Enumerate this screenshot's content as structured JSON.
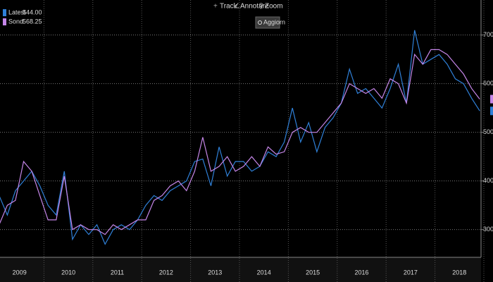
{
  "toolbar": {
    "track": "Track",
    "annotate": "Annotare",
    "zoom": "Zoom",
    "refresh": "Aggiorn"
  },
  "chart_data": {
    "type": "line",
    "categories": [
      null,
      null,
      null,
      "2009",
      null,
      null,
      null,
      null,
      null,
      "2010",
      null,
      null,
      null,
      null,
      null,
      "2011",
      null,
      null,
      null,
      null,
      null,
      "2012",
      null,
      null,
      null,
      null,
      null,
      "2013",
      null,
      null,
      null,
      null,
      null,
      "2014",
      null,
      null,
      null,
      null,
      null,
      "2015",
      null,
      null,
      null,
      null,
      null,
      "2016",
      null,
      null,
      null,
      null,
      null,
      "2017",
      null,
      null,
      null,
      null,
      null,
      "2018",
      null,
      null
    ],
    "series": [
      {
        "name": "Latest",
        "color": "#2f80d8",
        "last_label": "544.00",
        "values": [
          370,
          330,
          380,
          400,
          420,
          390,
          350,
          330,
          420,
          280,
          310,
          290,
          310,
          270,
          300,
          310,
          300,
          320,
          350,
          370,
          360,
          380,
          390,
          400,
          440,
          445,
          390,
          470,
          410,
          440,
          440,
          420,
          430,
          460,
          450,
          480,
          550,
          480,
          520,
          460,
          510,
          530,
          560,
          630,
          580,
          590,
          570,
          550,
          590,
          640,
          560,
          710,
          640,
          650,
          660,
          640,
          610,
          600,
          570,
          544
        ]
      },
      {
        "name": "Sond",
        "color": "#c586e8",
        "last_label": "568.25",
        "values": [
          310,
          350,
          360,
          440,
          420,
          370,
          320,
          320,
          410,
          300,
          310,
          300,
          300,
          290,
          310,
          300,
          310,
          320,
          320,
          360,
          370,
          390,
          400,
          380,
          420,
          490,
          420,
          430,
          450,
          420,
          430,
          450,
          430,
          470,
          455,
          460,
          500,
          510,
          500,
          500,
          520,
          540,
          560,
          600,
          590,
          580,
          590,
          570,
          610,
          600,
          560,
          660,
          640,
          670,
          670,
          660,
          640,
          620,
          590,
          568.25
        ]
      }
    ],
    "ylim": [
      243,
      772
    ],
    "yticks": [
      300,
      400,
      500,
      600,
      700
    ],
    "grid": true
  }
}
